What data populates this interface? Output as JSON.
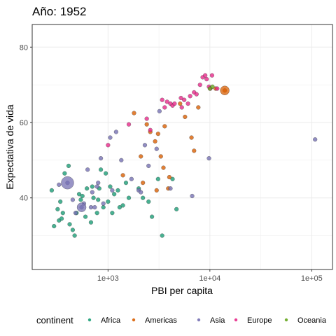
{
  "chart_data": {
    "type": "scatter",
    "title": "Año: 1952",
    "xlabel": "PBI per capita",
    "ylabel": "Expectativa de vida",
    "x_scale": "log10",
    "xlim": [
      180,
      160000
    ],
    "ylim": [
      21,
      86
    ],
    "x_ticks": [
      {
        "value": 1000,
        "label": "1e+03"
      },
      {
        "value": 10000,
        "label": "1e+04"
      },
      {
        "value": 100000,
        "label": "1e+05"
      }
    ],
    "y_ticks": [
      {
        "value": 40,
        "label": "40"
      },
      {
        "value": 60,
        "label": "60"
      },
      {
        "value": 80,
        "label": "80"
      }
    ],
    "grid": true,
    "legend": {
      "title": "continent",
      "position": "bottom",
      "entries": [
        {
          "name": "Africa",
          "color": "#1b9e77"
        },
        {
          "name": "Americas",
          "color": "#d95f02"
        },
        {
          "name": "Asia",
          "color": "#7570b3"
        },
        {
          "name": "Europe",
          "color": "#e7298a"
        },
        {
          "name": "Oceania",
          "color": "#66a61e"
        }
      ]
    },
    "series": [
      {
        "name": "Africa",
        "color": "#1b9e77",
        "points": [
          {
            "x": 280,
            "y": 42.0
          },
          {
            "x": 295,
            "y": 32.5
          },
          {
            "x": 320,
            "y": 37.0
          },
          {
            "x": 330,
            "y": 34.0
          },
          {
            "x": 340,
            "y": 39.0
          },
          {
            "x": 350,
            "y": 34.5
          },
          {
            "x": 360,
            "y": 36.0
          },
          {
            "x": 375,
            "y": 46.5
          },
          {
            "x": 410,
            "y": 48.5
          },
          {
            "x": 420,
            "y": 33.0
          },
          {
            "x": 450,
            "y": 31.5
          },
          {
            "x": 470,
            "y": 30.0
          },
          {
            "x": 490,
            "y": 36.0
          },
          {
            "x": 520,
            "y": 41.0
          },
          {
            "x": 540,
            "y": 39.5
          },
          {
            "x": 560,
            "y": 40.5
          },
          {
            "x": 600,
            "y": 35.0
          },
          {
            "x": 620,
            "y": 42.5
          },
          {
            "x": 680,
            "y": 33.5
          },
          {
            "x": 700,
            "y": 43.0
          },
          {
            "x": 720,
            "y": 40.0
          },
          {
            "x": 780,
            "y": 36.0
          },
          {
            "x": 800,
            "y": 39.5
          },
          {
            "x": 820,
            "y": 42.5
          },
          {
            "x": 850,
            "y": 47.5
          },
          {
            "x": 900,
            "y": 37.5
          },
          {
            "x": 950,
            "y": 46.5
          },
          {
            "x": 1000,
            "y": 39.0
          },
          {
            "x": 1050,
            "y": 43.0
          },
          {
            "x": 1100,
            "y": 36.0
          },
          {
            "x": 1150,
            "y": 41.0
          },
          {
            "x": 1250,
            "y": 42.0
          },
          {
            "x": 1300,
            "y": 37.5
          },
          {
            "x": 1400,
            "y": 38.0
          },
          {
            "x": 1500,
            "y": 44.0
          },
          {
            "x": 1600,
            "y": 40.0
          },
          {
            "x": 2000,
            "y": 42.5
          },
          {
            "x": 2200,
            "y": 40.0
          },
          {
            "x": 2500,
            "y": 39.0
          },
          {
            "x": 2700,
            "y": 35.0
          },
          {
            "x": 3100,
            "y": 45.0
          },
          {
            "x": 3400,
            "y": 30.0
          },
          {
            "x": 4300,
            "y": 45.0
          },
          {
            "x": 4700,
            "y": 37.0
          }
        ]
      },
      {
        "name": "Americas",
        "color": "#d95f02",
        "points": [
          {
            "x": 1400,
            "y": 46.0
          },
          {
            "x": 1800,
            "y": 62.5
          },
          {
            "x": 2100,
            "y": 51.0
          },
          {
            "x": 2200,
            "y": 44.0
          },
          {
            "x": 2400,
            "y": 59.5
          },
          {
            "x": 2600,
            "y": 57.5
          },
          {
            "x": 2900,
            "y": 55.0
          },
          {
            "x": 3000,
            "y": 42.0
          },
          {
            "x": 3100,
            "y": 57.0
          },
          {
            "x": 3300,
            "y": 51.0
          },
          {
            "x": 3500,
            "y": 48.0
          },
          {
            "x": 3600,
            "y": 59.0
          },
          {
            "x": 3900,
            "y": 42.5
          },
          {
            "x": 4000,
            "y": 45.5
          },
          {
            "x": 5100,
            "y": 65.0
          },
          {
            "x": 5700,
            "y": 61.5
          },
          {
            "x": 6600,
            "y": 56.0
          },
          {
            "x": 7000,
            "y": 52.5
          },
          {
            "x": 7700,
            "y": 64.0
          },
          {
            "x": 11400,
            "y": 69.0
          },
          {
            "x": 14000,
            "y": 68.5
          }
        ]
      },
      {
        "name": "Asia",
        "color": "#7570b3",
        "points": [
          {
            "x": 330,
            "y": 43.5
          },
          {
            "x": 400,
            "y": 44.0
          },
          {
            "x": 450,
            "y": 39.5
          },
          {
            "x": 480,
            "y": 36.0
          },
          {
            "x": 550,
            "y": 37.5
          },
          {
            "x": 580,
            "y": 38.5
          },
          {
            "x": 630,
            "y": 47.5
          },
          {
            "x": 680,
            "y": 37.5
          },
          {
            "x": 700,
            "y": 41.5
          },
          {
            "x": 740,
            "y": 37.5
          },
          {
            "x": 780,
            "y": 43.0
          },
          {
            "x": 800,
            "y": 44.0
          },
          {
            "x": 850,
            "y": 50.5
          },
          {
            "x": 900,
            "y": 38.5
          },
          {
            "x": 1050,
            "y": 56.0
          },
          {
            "x": 1100,
            "y": 42.0
          },
          {
            "x": 1200,
            "y": 57.5
          },
          {
            "x": 1350,
            "y": 50.0
          },
          {
            "x": 1700,
            "y": 45.0
          },
          {
            "x": 2000,
            "y": 42.0
          },
          {
            "x": 2100,
            "y": 41.5
          },
          {
            "x": 2300,
            "y": 54.0
          },
          {
            "x": 2500,
            "y": 48.5
          },
          {
            "x": 3000,
            "y": 53.0
          },
          {
            "x": 3200,
            "y": 63.0
          },
          {
            "x": 4100,
            "y": 42.5
          },
          {
            "x": 6700,
            "y": 40.5
          },
          {
            "x": 9800,
            "y": 50.5
          },
          {
            "x": 108000,
            "y": 55.5
          }
        ]
      },
      {
        "name": "Europe",
        "color": "#e7298a",
        "points": [
          {
            "x": 1000,
            "y": 54.0
          },
          {
            "x": 1600,
            "y": 59.5
          },
          {
            "x": 2400,
            "y": 61.0
          },
          {
            "x": 2600,
            "y": 58.0
          },
          {
            "x": 3400,
            "y": 66.0
          },
          {
            "x": 3600,
            "y": 64.0
          },
          {
            "x": 3800,
            "y": 65.5
          },
          {
            "x": 4100,
            "y": 65.0
          },
          {
            "x": 4300,
            "y": 64.5
          },
          {
            "x": 4500,
            "y": 65.0
          },
          {
            "x": 5200,
            "y": 66.5
          },
          {
            "x": 5300,
            "y": 64.0
          },
          {
            "x": 5600,
            "y": 66.0
          },
          {
            "x": 6100,
            "y": 65.0
          },
          {
            "x": 6400,
            "y": 67.0
          },
          {
            "x": 7000,
            "y": 68.0
          },
          {
            "x": 7400,
            "y": 67.5
          },
          {
            "x": 8000,
            "y": 70.0
          },
          {
            "x": 8500,
            "y": 72.0
          },
          {
            "x": 9000,
            "y": 72.5
          },
          {
            "x": 9300,
            "y": 71.5
          },
          {
            "x": 9800,
            "y": 69.5
          },
          {
            "x": 10100,
            "y": 69.0
          },
          {
            "x": 10500,
            "y": 72.5
          },
          {
            "x": 11800,
            "y": 69.0
          }
        ]
      },
      {
        "name": "Oceania",
        "color": "#66a61e",
        "points": [
          {
            "x": 10000,
            "y": 69.0
          },
          {
            "x": 10600,
            "y": 69.5
          }
        ]
      }
    ],
    "large_markers": [
      {
        "name": "Asia",
        "x": 400,
        "y": 44.0,
        "size": "large"
      },
      {
        "name": "Asia",
        "x": 550,
        "y": 37.5,
        "size": "large"
      },
      {
        "name": "Americas",
        "x": 14000,
        "y": 68.5,
        "size": "large"
      }
    ]
  }
}
